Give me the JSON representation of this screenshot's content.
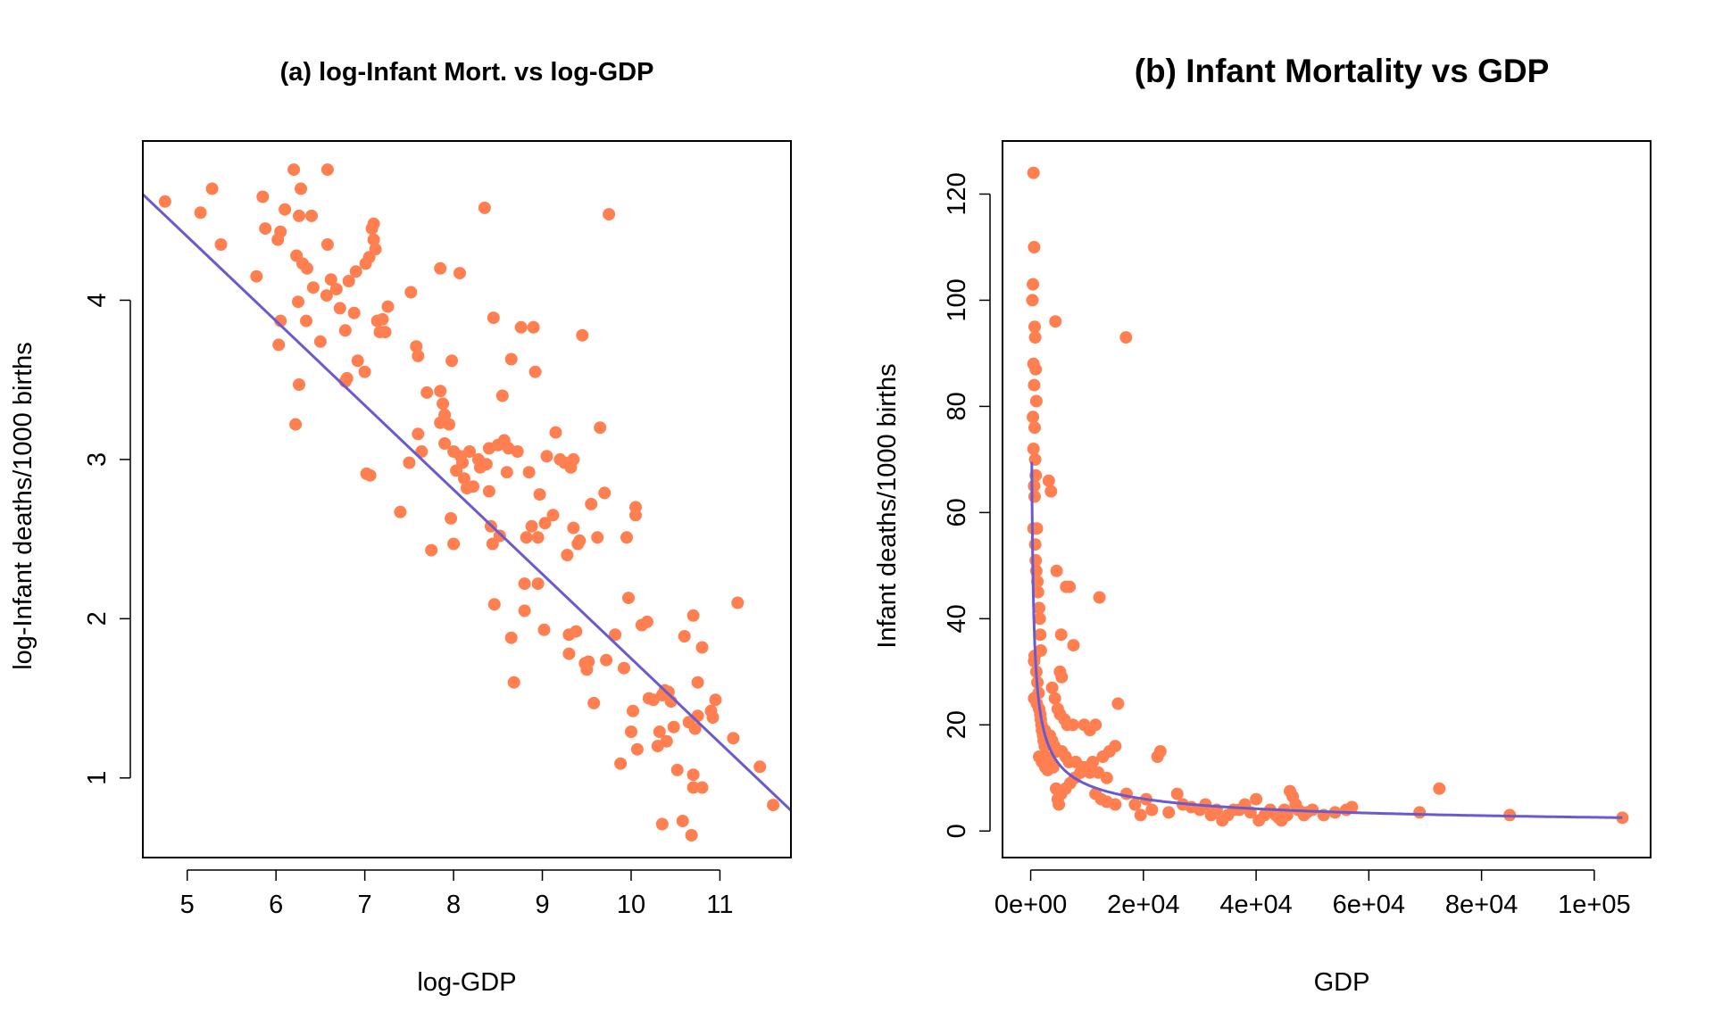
{
  "chart_data": [
    {
      "type": "scatter",
      "title": "(a) log-Infant Mort. vs log-GDP",
      "xlabel": "log-GDP",
      "ylabel": "log-Infant deaths/1000 births",
      "xlim": [
        4.5,
        11.8
      ],
      "ylim": [
        0.5,
        5.0
      ],
      "xticks": [
        "5",
        "6",
        "7",
        "8",
        "9",
        "10",
        "11"
      ],
      "yticks": [
        "1",
        "2",
        "3",
        "4"
      ],
      "point_color": "#FF7F50",
      "line_color": "#6A5ACD",
      "fit_line": {
        "intercept": 7.05,
        "slope": -0.53
      },
      "points": [
        [
          4.75,
          4.62
        ],
        [
          5.15,
          4.55
        ],
        [
          5.28,
          4.7
        ],
        [
          5.38,
          4.35
        ],
        [
          5.78,
          4.15
        ],
        [
          5.85,
          4.65
        ],
        [
          5.88,
          4.45
        ],
        [
          6.02,
          4.38
        ],
        [
          6.05,
          4.43
        ],
        [
          6.1,
          4.57
        ],
        [
          6.2,
          4.82
        ],
        [
          6.23,
          4.28
        ],
        [
          6.26,
          4.53
        ],
        [
          6.28,
          4.7
        ],
        [
          6.35,
          4.2
        ],
        [
          6.4,
          4.53
        ],
        [
          6.42,
          4.08
        ],
        [
          6.3,
          4.23
        ],
        [
          6.25,
          3.99
        ],
        [
          6.05,
          3.87
        ],
        [
          6.03,
          3.72
        ],
        [
          6.34,
          3.87
        ],
        [
          6.5,
          3.74
        ],
        [
          6.57,
          4.03
        ],
        [
          6.58,
          4.35
        ],
        [
          6.58,
          4.82
        ],
        [
          6.62,
          4.13
        ],
        [
          6.68,
          4.07
        ],
        [
          6.72,
          3.95
        ],
        [
          6.78,
          3.81
        ],
        [
          6.82,
          4.12
        ],
        [
          6.88,
          3.92
        ],
        [
          6.9,
          4.18
        ],
        [
          6.92,
          3.62
        ],
        [
          6.78,
          3.49
        ],
        [
          6.8,
          3.51
        ],
        [
          6.26,
          3.47
        ],
        [
          6.22,
          3.22
        ],
        [
          7.0,
          3.55
        ],
        [
          7.01,
          4.23
        ],
        [
          7.05,
          4.27
        ],
        [
          7.08,
          4.45
        ],
        [
          7.1,
          4.48
        ],
        [
          7.1,
          4.38
        ],
        [
          7.12,
          4.32
        ],
        [
          7.14,
          3.87
        ],
        [
          7.17,
          3.8
        ],
        [
          7.2,
          3.88
        ],
        [
          7.23,
          3.8
        ],
        [
          7.26,
          3.96
        ],
        [
          7.02,
          2.91
        ],
        [
          7.06,
          2.9
        ],
        [
          7.4,
          2.67
        ],
        [
          7.52,
          4.05
        ],
        [
          7.58,
          3.71
        ],
        [
          7.6,
          3.65
        ],
        [
          7.5,
          2.98
        ],
        [
          7.6,
          3.16
        ],
        [
          7.64,
          3.05
        ],
        [
          7.7,
          3.42
        ],
        [
          7.75,
          2.43
        ],
        [
          7.85,
          4.2
        ],
        [
          7.85,
          3.43
        ],
        [
          7.85,
          3.23
        ],
        [
          7.88,
          3.35
        ],
        [
          7.9,
          3.28
        ],
        [
          7.9,
          3.1
        ],
        [
          7.95,
          3.22
        ],
        [
          7.97,
          2.63
        ],
        [
          7.98,
          3.62
        ],
        [
          8.0,
          2.47
        ],
        [
          8.0,
          3.05
        ],
        [
          8.03,
          2.93
        ],
        [
          8.07,
          4.17
        ],
        [
          8.08,
          3.02
        ],
        [
          8.1,
          2.98
        ],
        [
          8.12,
          2.88
        ],
        [
          8.15,
          2.82
        ],
        [
          8.18,
          3.05
        ],
        [
          8.22,
          2.83
        ],
        [
          8.28,
          3.0
        ],
        [
          8.3,
          2.95
        ],
        [
          8.35,
          4.58
        ],
        [
          8.37,
          2.97
        ],
        [
          8.4,
          3.07
        ],
        [
          8.4,
          2.8
        ],
        [
          8.42,
          2.58
        ],
        [
          8.44,
          2.47
        ],
        [
          8.45,
          3.89
        ],
        [
          8.46,
          2.09
        ],
        [
          8.5,
          3.09
        ],
        [
          8.52,
          2.52
        ],
        [
          8.55,
          3.4
        ],
        [
          8.57,
          3.12
        ],
        [
          8.6,
          2.92
        ],
        [
          8.62,
          3.07
        ],
        [
          8.65,
          3.63
        ],
        [
          8.65,
          1.88
        ],
        [
          8.68,
          1.6
        ],
        [
          8.72,
          3.05
        ],
        [
          8.76,
          3.83
        ],
        [
          8.8,
          2.22
        ],
        [
          8.8,
          2.05
        ],
        [
          8.82,
          2.51
        ],
        [
          8.85,
          2.92
        ],
        [
          8.88,
          2.58
        ],
        [
          8.9,
          3.83
        ],
        [
          8.92,
          3.55
        ],
        [
          8.95,
          2.51
        ],
        [
          8.97,
          2.78
        ],
        [
          8.95,
          2.22
        ],
        [
          9.02,
          1.93
        ],
        [
          9.03,
          2.6
        ],
        [
          9.05,
          3.02
        ],
        [
          9.12,
          2.65
        ],
        [
          9.15,
          3.17
        ],
        [
          9.2,
          3.0
        ],
        [
          9.25,
          2.98
        ],
        [
          9.28,
          2.4
        ],
        [
          9.3,
          1.9
        ],
        [
          9.3,
          1.78
        ],
        [
          9.32,
          2.95
        ],
        [
          9.35,
          3.0
        ],
        [
          9.35,
          2.57
        ],
        [
          9.38,
          1.92
        ],
        [
          9.4,
          2.47
        ],
        [
          9.42,
          2.49
        ],
        [
          9.45,
          3.78
        ],
        [
          9.48,
          1.72
        ],
        [
          9.5,
          1.68
        ],
        [
          9.52,
          1.73
        ],
        [
          9.55,
          2.72
        ],
        [
          9.58,
          1.47
        ],
        [
          9.62,
          2.51
        ],
        [
          9.65,
          3.2
        ],
        [
          9.7,
          2.79
        ],
        [
          9.72,
          1.74
        ],
        [
          9.75,
          4.54
        ],
        [
          9.82,
          1.9
        ],
        [
          9.88,
          1.09
        ],
        [
          9.92,
          1.69
        ],
        [
          9.95,
          2.51
        ],
        [
          9.97,
          2.13
        ],
        [
          10.0,
          1.29
        ],
        [
          10.02,
          1.42
        ],
        [
          10.05,
          2.65
        ],
        [
          10.05,
          2.7
        ],
        [
          10.07,
          1.18
        ],
        [
          10.12,
          1.96
        ],
        [
          10.18,
          1.98
        ],
        [
          10.2,
          1.5
        ],
        [
          10.25,
          1.49
        ],
        [
          10.3,
          1.2
        ],
        [
          10.32,
          1.29
        ],
        [
          10.35,
          0.71
        ],
        [
          10.35,
          1.52
        ],
        [
          10.38,
          1.55
        ],
        [
          10.4,
          1.23
        ],
        [
          10.42,
          1.54
        ],
        [
          10.45,
          1.48
        ],
        [
          10.48,
          1.32
        ],
        [
          10.52,
          1.05
        ],
        [
          10.58,
          0.73
        ],
        [
          10.6,
          1.89
        ],
        [
          10.65,
          1.35
        ],
        [
          10.68,
          0.64
        ],
        [
          10.7,
          2.02
        ],
        [
          10.7,
          1.02
        ],
        [
          10.7,
          0.94
        ],
        [
          10.72,
          1.31
        ],
        [
          10.75,
          1.6
        ],
        [
          10.75,
          1.39
        ],
        [
          10.8,
          1.82
        ],
        [
          10.8,
          0.94
        ],
        [
          10.9,
          1.42
        ],
        [
          10.92,
          1.38
        ],
        [
          10.95,
          1.49
        ],
        [
          11.15,
          1.25
        ],
        [
          11.2,
          2.1
        ],
        [
          11.45,
          1.07
        ],
        [
          11.6,
          0.83
        ]
      ]
    },
    {
      "type": "scatter",
      "title": "(b) Infant Mortality vs GDP",
      "xlabel": "GDP",
      "ylabel": "Infant deaths/1000 births",
      "xlim": [
        -5000,
        110000
      ],
      "ylim": [
        -5,
        130
      ],
      "xticks": [
        "0e+00",
        "2e+04",
        "4e+04",
        "6e+04",
        "8e+04",
        "1e+05"
      ],
      "yticks": [
        "0",
        "20",
        "40",
        "60",
        "80",
        "100",
        "120"
      ],
      "point_color": "#FF7F50",
      "line_color": "#6A5ACD",
      "curve": {
        "form": "exp(7.05) * GDP^(-0.53)"
      },
      "points": [
        [
          500,
          124
        ],
        [
          600,
          110
        ],
        [
          400,
          103
        ],
        [
          300,
          100
        ],
        [
          700,
          95
        ],
        [
          800,
          93
        ],
        [
          500,
          88
        ],
        [
          900,
          87
        ],
        [
          600,
          84
        ],
        [
          1000,
          81
        ],
        [
          400,
          78
        ],
        [
          700,
          76
        ],
        [
          500,
          72
        ],
        [
          800,
          70
        ],
        [
          900,
          67
        ],
        [
          600,
          65
        ],
        [
          700,
          63
        ],
        [
          500,
          57
        ],
        [
          1100,
          57
        ],
        [
          800,
          54
        ],
        [
          900,
          51
        ],
        [
          1000,
          49
        ],
        [
          1200,
          47
        ],
        [
          1300,
          45
        ],
        [
          1500,
          42
        ],
        [
          1600,
          40
        ],
        [
          1700,
          37
        ],
        [
          1800,
          34
        ],
        [
          700,
          33
        ],
        [
          600,
          32
        ],
        [
          1000,
          30
        ],
        [
          1200,
          28
        ],
        [
          1400,
          26
        ],
        [
          600,
          25
        ],
        [
          1100,
          24
        ],
        [
          1500,
          23
        ],
        [
          1700,
          22
        ],
        [
          1800,
          21
        ],
        [
          1900,
          20
        ],
        [
          2000,
          19
        ],
        [
          2200,
          18
        ],
        [
          2300,
          17
        ],
        [
          2500,
          16
        ],
        [
          1500,
          14
        ],
        [
          2000,
          13
        ],
        [
          2600,
          12
        ],
        [
          3000,
          11.5
        ],
        [
          3200,
          66
        ],
        [
          3600,
          64
        ],
        [
          4400,
          96
        ],
        [
          4600,
          49
        ],
        [
          6300,
          46
        ],
        [
          6900,
          46
        ],
        [
          16900,
          93
        ],
        [
          12200,
          44
        ],
        [
          5400,
          37
        ],
        [
          7600,
          35
        ],
        [
          5200,
          30
        ],
        [
          5500,
          29
        ],
        [
          3800,
          27
        ],
        [
          4300,
          25
        ],
        [
          4800,
          23
        ],
        [
          5200,
          22
        ],
        [
          6000,
          21
        ],
        [
          6500,
          20
        ],
        [
          7500,
          20
        ],
        [
          9500,
          20
        ],
        [
          10500,
          19
        ],
        [
          11500,
          20
        ],
        [
          3400,
          18
        ],
        [
          3800,
          17
        ],
        [
          4200,
          16
        ],
        [
          4600,
          15
        ],
        [
          5500,
          15
        ],
        [
          6200,
          14
        ],
        [
          6800,
          13
        ],
        [
          8000,
          13
        ],
        [
          9200,
          12
        ],
        [
          10500,
          11
        ],
        [
          12000,
          11
        ],
        [
          13500,
          10
        ],
        [
          15000,
          16
        ],
        [
          15500,
          24
        ],
        [
          14000,
          15
        ],
        [
          12800,
          14
        ],
        [
          11000,
          13
        ],
        [
          9800,
          12
        ],
        [
          8800,
          11
        ],
        [
          7800,
          10
        ],
        [
          7000,
          9
        ],
        [
          6200,
          8
        ],
        [
          5400,
          7
        ],
        [
          4800,
          6
        ],
        [
          5000,
          5
        ],
        [
          4500,
          8
        ],
        [
          3500,
          13
        ],
        [
          4000,
          12
        ],
        [
          3000,
          12
        ],
        [
          2700,
          14
        ],
        [
          2500,
          19
        ],
        [
          2800,
          17
        ],
        [
          11500,
          7
        ],
        [
          12500,
          6
        ],
        [
          13500,
          5.5
        ],
        [
          15000,
          5
        ],
        [
          17000,
          7
        ],
        [
          18500,
          5
        ],
        [
          19500,
          3
        ],
        [
          20500,
          6
        ],
        [
          21500,
          4
        ],
        [
          22500,
          14
        ],
        [
          23000,
          15
        ],
        [
          24500,
          3.5
        ],
        [
          26000,
          7
        ],
        [
          27000,
          5
        ],
        [
          28500,
          4.5
        ],
        [
          30000,
          4
        ],
        [
          31000,
          5
        ],
        [
          32000,
          3
        ],
        [
          33000,
          4
        ],
        [
          34000,
          2
        ],
        [
          35000,
          3
        ],
        [
          36000,
          4
        ],
        [
          37000,
          4
        ],
        [
          38000,
          5
        ],
        [
          39000,
          3.5
        ],
        [
          40000,
          6
        ],
        [
          40500,
          2
        ],
        [
          41500,
          3
        ],
        [
          42500,
          4
        ],
        [
          43500,
          3
        ],
        [
          44000,
          2.5
        ],
        [
          44500,
          2
        ],
        [
          45000,
          4
        ],
        [
          45500,
          3
        ],
        [
          46000,
          7.5
        ],
        [
          46500,
          6.5
        ],
        [
          47000,
          5
        ],
        [
          47500,
          4
        ],
        [
          48500,
          3
        ],
        [
          49000,
          3.5
        ],
        [
          50000,
          4
        ],
        [
          52000,
          3
        ],
        [
          54000,
          3.5
        ],
        [
          56000,
          4
        ],
        [
          57000,
          4.5
        ],
        [
          69000,
          3.5
        ],
        [
          72500,
          8
        ],
        [
          85000,
          3
        ],
        [
          105000,
          2.5
        ]
      ]
    }
  ]
}
